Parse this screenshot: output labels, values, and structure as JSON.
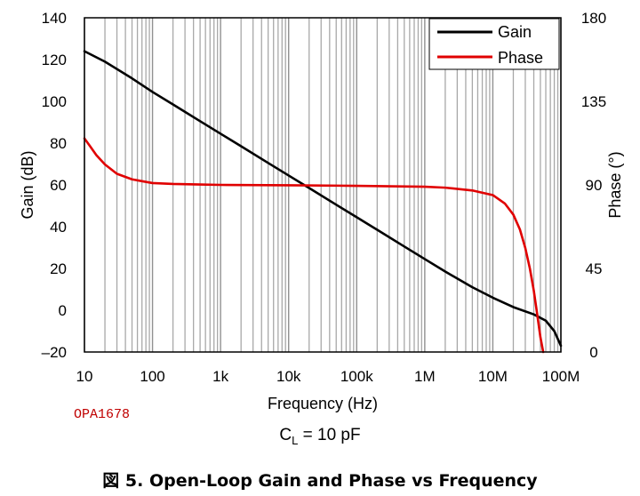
{
  "chart_data": {
    "type": "line",
    "x_scale": "log",
    "xlabel": "Frequency (Hz)",
    "ylabel": "Gain (dB)",
    "y2label": "Phase (°)",
    "xlim": [
      10,
      100000000
    ],
    "ylim": [
      -20,
      140
    ],
    "y2lim": [
      0,
      180
    ],
    "x_ticks": [
      10,
      100,
      1000,
      10000,
      100000,
      1000000,
      10000000,
      100000000
    ],
    "x_tick_labels": [
      "10",
      "100",
      "1k",
      "10k",
      "100k",
      "1M",
      "10M",
      "100M"
    ],
    "y_ticks": [
      -20,
      0,
      20,
      40,
      60,
      80,
      100,
      120,
      140
    ],
    "y_tick_labels": [
      "–20",
      "0",
      "20",
      "40",
      "60",
      "80",
      "100",
      "120",
      "140"
    ],
    "y2_ticks": [
      0,
      45,
      90,
      135,
      180
    ],
    "y2_tick_labels": [
      "0",
      "45",
      "90",
      "135",
      "180"
    ],
    "grid": true,
    "legend_position": "top-right",
    "series": [
      {
        "name": "Gain",
        "axis": "left",
        "color": "#000000",
        "x": [
          10,
          20,
          50,
          100,
          200,
          500,
          1000,
          2000,
          5000,
          10000,
          20000,
          50000,
          100000,
          200000,
          500000,
          1000000,
          2000000,
          5000000,
          10000000,
          20000000,
          40000000,
          60000000,
          80000000,
          100000000
        ],
        "y": [
          124,
          119,
          111,
          104.5,
          98.5,
          90.5,
          84.5,
          78.5,
          70.5,
          64.5,
          58.5,
          50.5,
          44.5,
          38.5,
          30.5,
          24.5,
          18.5,
          11,
          6,
          1.5,
          -2,
          -5,
          -10,
          -17
        ]
      },
      {
        "name": "Phase",
        "axis": "right",
        "color": "#e00000",
        "x": [
          10,
          12,
          15,
          20,
          30,
          50,
          70,
          100,
          200,
          500,
          1000,
          10000,
          100000,
          1000000,
          2000000,
          5000000,
          10000000,
          15000000,
          20000000,
          25000000,
          30000000,
          35000000,
          40000000,
          45000000,
          50000000,
          55000000
        ],
        "y": [
          115,
          111,
          106,
          101,
          96,
          93,
          92,
          91,
          90.5,
          90.2,
          90,
          89.8,
          89.5,
          89,
          88.5,
          87,
          84.5,
          80,
          74,
          66,
          56,
          45,
          33,
          20,
          8,
          0
        ]
      }
    ]
  },
  "notes": {
    "device_tag": "OPA1678",
    "condition_prefix": "C",
    "condition_subscript": "L",
    "condition_value": " = 10 pF"
  },
  "caption": "図 5. Open-Loop Gain and Phase vs Frequency"
}
